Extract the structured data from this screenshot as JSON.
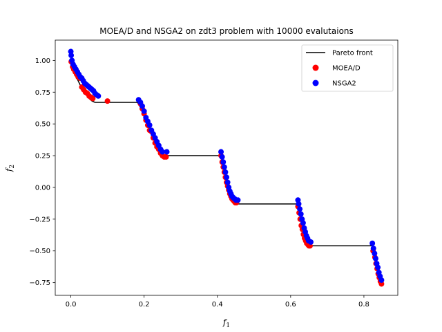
{
  "chart_data": {
    "type": "scatter",
    "title": "MOEA/D and NSGA2 on zdt3 problem with 10000 evalutaions",
    "xlabel": {
      "main": "f",
      "sub": "1"
    },
    "ylabel": {
      "main": "f",
      "sub": "2"
    },
    "xlim": [
      -0.0425,
      0.8925
    ],
    "ylim": [
      -0.85,
      1.16
    ],
    "xticks": [
      0.0,
      0.2,
      0.4,
      0.6,
      0.8
    ],
    "xtick_labels": [
      "0.0",
      "0.2",
      "0.4",
      "0.6",
      "0.8"
    ],
    "yticks": [
      -0.75,
      -0.5,
      -0.25,
      0.0,
      0.25,
      0.5,
      0.75,
      1.0
    ],
    "ytick_labels": [
      "−0.75",
      "−0.50",
      "−0.25",
      "0.00",
      "0.25",
      "0.50",
      "0.75",
      "1.00"
    ],
    "grid": false,
    "legend_position": "top-right",
    "colors": {
      "pareto": "#000000",
      "moead": "#ff0000",
      "nsga2": "#0000ff"
    },
    "legend": [
      {
        "label": "Pareto front",
        "kind": "line",
        "color": "#000000"
      },
      {
        "label": "MOEA/D",
        "kind": "marker",
        "color": "#ff0000"
      },
      {
        "label": "NSGA2",
        "kind": "marker",
        "color": "#0000ff"
      }
    ],
    "series": [
      {
        "name": "Pareto front",
        "kind": "line",
        "x": [
          0.0,
          0.0083,
          0.0166,
          0.025,
          0.033,
          0.042,
          0.05,
          0.058,
          0.066,
          0.075,
          0.083,
          0.1,
          0.182,
          0.19,
          0.2,
          0.21,
          0.22,
          0.23,
          0.24,
          0.25,
          0.256,
          0.4,
          0.409,
          0.415,
          0.42,
          0.425,
          0.43,
          0.435,
          0.44,
          0.445,
          0.45,
          0.454,
          0.6,
          0.618,
          0.625,
          0.63,
          0.635,
          0.64,
          0.645,
          0.65,
          0.652,
          0.8,
          0.823,
          0.828,
          0.832,
          0.836,
          0.84,
          0.844,
          0.848,
          0.852
        ],
        "y": [
          1.0,
          0.91,
          0.86,
          0.81,
          0.77,
          0.73,
          0.7,
          0.68,
          0.67,
          0.67,
          0.67,
          0.67,
          0.67,
          0.63,
          0.56,
          0.49,
          0.42,
          0.36,
          0.31,
          0.27,
          0.25,
          0.25,
          0.25,
          0.18,
          0.12,
          0.06,
          0.01,
          -0.03,
          -0.07,
          -0.1,
          -0.12,
          -0.13,
          -0.13,
          -0.13,
          -0.21,
          -0.28,
          -0.34,
          -0.39,
          -0.43,
          -0.45,
          -0.46,
          -0.46,
          -0.46,
          -0.53,
          -0.59,
          -0.64,
          -0.68,
          -0.72,
          -0.76,
          -0.77
        ]
      },
      {
        "name": "MOEA/D",
        "kind": "scatter",
        "x": [
          0.001,
          0.005,
          0.008,
          0.012,
          0.016,
          0.02,
          0.025,
          0.03,
          0.035,
          0.04,
          0.045,
          0.05,
          0.055,
          0.06,
          0.1,
          0.19,
          0.195,
          0.2,
          0.205,
          0.21,
          0.215,
          0.22,
          0.225,
          0.23,
          0.235,
          0.24,
          0.245,
          0.25,
          0.255,
          0.26,
          0.41,
          0.413,
          0.416,
          0.419,
          0.422,
          0.425,
          0.428,
          0.431,
          0.434,
          0.437,
          0.44,
          0.443,
          0.446,
          0.449,
          0.452,
          0.62,
          0.623,
          0.626,
          0.629,
          0.632,
          0.635,
          0.638,
          0.641,
          0.644,
          0.647,
          0.65,
          0.653,
          0.825,
          0.83,
          0.833,
          0.836,
          0.839,
          0.842,
          0.845,
          0.848
        ],
        "y": [
          0.99,
          0.95,
          0.93,
          0.91,
          0.89,
          0.87,
          0.86,
          0.79,
          0.77,
          0.75,
          0.74,
          0.72,
          0.71,
          0.7,
          0.68,
          0.66,
          0.62,
          0.58,
          0.53,
          0.49,
          0.45,
          0.44,
          0.39,
          0.35,
          0.32,
          0.3,
          0.27,
          0.25,
          0.24,
          0.24,
          0.25,
          0.2,
          0.16,
          0.12,
          0.08,
          0.04,
          0.01,
          -0.02,
          -0.05,
          -0.07,
          -0.09,
          -0.1,
          -0.11,
          -0.12,
          -0.12,
          -0.15,
          -0.2,
          -0.25,
          -0.3,
          -0.33,
          -0.37,
          -0.4,
          -0.42,
          -0.44,
          -0.45,
          -0.46,
          -0.46,
          -0.5,
          -0.55,
          -0.6,
          -0.64,
          -0.68,
          -0.71,
          -0.74,
          -0.76
        ]
      },
      {
        "name": "NSGA2",
        "kind": "scatter",
        "x": [
          0.0,
          0.001,
          0.003,
          0.006,
          0.01,
          0.014,
          0.018,
          0.022,
          0.026,
          0.03,
          0.034,
          0.038,
          0.042,
          0.046,
          0.05,
          0.054,
          0.058,
          0.062,
          0.066,
          0.07,
          0.075,
          0.185,
          0.19,
          0.195,
          0.2,
          0.205,
          0.21,
          0.215,
          0.22,
          0.225,
          0.23,
          0.235,
          0.24,
          0.245,
          0.25,
          0.262,
          0.41,
          0.413,
          0.416,
          0.419,
          0.422,
          0.425,
          0.428,
          0.431,
          0.434,
          0.437,
          0.44,
          0.443,
          0.447,
          0.451,
          0.456,
          0.62,
          0.622,
          0.625,
          0.628,
          0.631,
          0.634,
          0.637,
          0.64,
          0.643,
          0.646,
          0.649,
          0.655,
          0.823,
          0.826,
          0.829,
          0.832,
          0.835,
          0.838,
          0.841,
          0.844,
          0.848
        ],
        "y": [
          1.07,
          1.04,
          1.0,
          0.97,
          0.95,
          0.93,
          0.91,
          0.89,
          0.87,
          0.86,
          0.84,
          0.82,
          0.81,
          0.8,
          0.79,
          0.78,
          0.77,
          0.76,
          0.74,
          0.73,
          0.72,
          0.69,
          0.67,
          0.64,
          0.6,
          0.55,
          0.52,
          0.49,
          0.45,
          0.42,
          0.39,
          0.36,
          0.33,
          0.3,
          0.28,
          0.28,
          0.28,
          0.24,
          0.2,
          0.16,
          0.12,
          0.08,
          0.04,
          0.0,
          -0.03,
          -0.05,
          -0.07,
          -0.08,
          -0.09,
          -0.1,
          -0.1,
          -0.1,
          -0.13,
          -0.17,
          -0.21,
          -0.25,
          -0.28,
          -0.32,
          -0.35,
          -0.38,
          -0.4,
          -0.42,
          -0.43,
          -0.44,
          -0.48,
          -0.52,
          -0.56,
          -0.6,
          -0.63,
          -0.67,
          -0.7,
          -0.73
        ]
      }
    ]
  }
}
